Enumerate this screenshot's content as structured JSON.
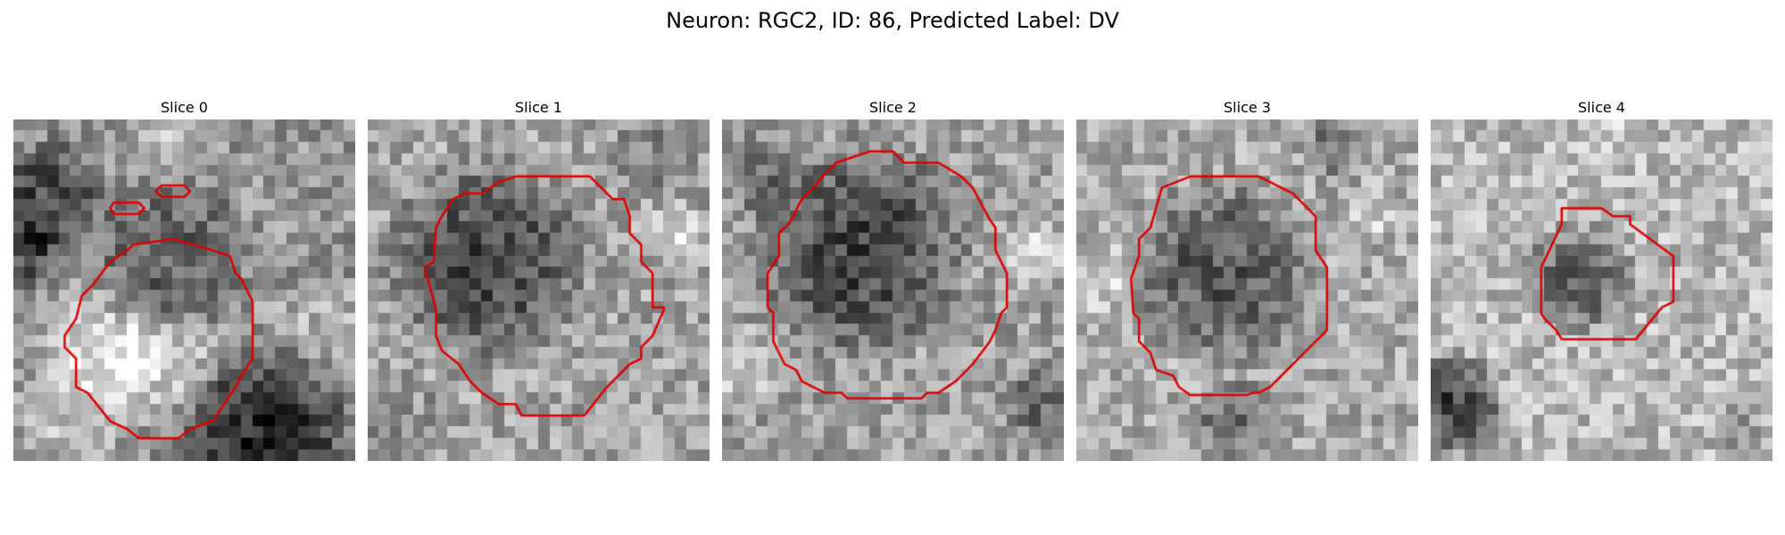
{
  "figure": {
    "title": "Neuron: RGC2, ID: 86, Predicted Label: DV"
  },
  "colors": {
    "contour": "#e00000",
    "background": "#ffffff"
  },
  "panels": [
    {
      "title": "Slice 0"
    },
    {
      "title": "Slice 1"
    },
    {
      "title": "Slice 2"
    },
    {
      "title": "Slice 3"
    },
    {
      "title": "Slice 4"
    }
  ]
}
